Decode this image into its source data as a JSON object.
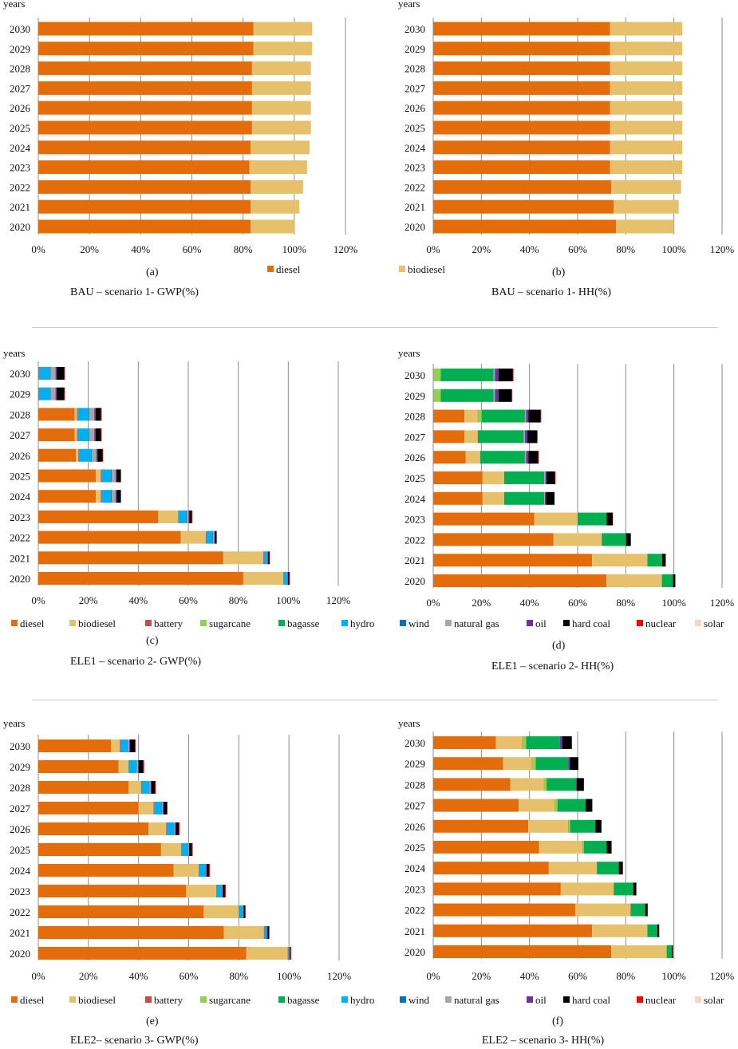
{
  "colors": {
    "diesel": "#e46c0a",
    "biodiesel": "#e6c06a",
    "battery": "#c0504d",
    "sugarcane": "#92d050",
    "bagasse": "#00b050",
    "hydro": "#00b0f0",
    "wind": "#0070c0",
    "natural gas": "#a6a6a6",
    "oil": "#7030a0",
    "hard coal": "#000000",
    "nuclear": "#ff0000",
    "solar": "#fbd4c4"
  },
  "legends": {
    "bau": [
      "diesel",
      "biodiesel"
    ],
    "ele": [
      "diesel",
      "biodiesel",
      "battery",
      "sugarcane",
      "bagasse",
      "hydro",
      "wind",
      "natural gas",
      "oil",
      "hard coal",
      "nuclear",
      "solar"
    ]
  },
  "chart_data": [
    {
      "type": "bar",
      "orientation": "horizontal",
      "stacked": true,
      "panel_label": "(a)",
      "title": "BAU – scenario 1-  GWP(%)",
      "ylabel": "years",
      "categories": [
        "2020",
        "2021",
        "2022",
        "2023",
        "2024",
        "2025",
        "2026",
        "2027",
        "2028",
        "2029",
        "2030"
      ],
      "xlim": [
        0,
        120
      ],
      "xticks": [
        0,
        20,
        40,
        60,
        80,
        100,
        120
      ],
      "grid": true,
      "legend": "bau",
      "series": [
        {
          "name": "diesel",
          "values": [
            83,
            83,
            83,
            82.5,
            83,
            83.5,
            83.5,
            83.5,
            83.5,
            84,
            84
          ]
        },
        {
          "name": "biodiesel",
          "values": [
            17,
            19,
            20.5,
            22.5,
            23,
            23,
            23,
            23,
            23,
            23,
            23
          ]
        }
      ]
    },
    {
      "type": "bar",
      "orientation": "horizontal",
      "stacked": true,
      "panel_label": "(b)",
      "title": "BAU – scenario 1-  HH(%)",
      "ylabel": "years",
      "categories": [
        "2020",
        "2021",
        "2022",
        "2023",
        "2024",
        "2025",
        "2026",
        "2027",
        "2028",
        "2029",
        "2030"
      ],
      "xlim": [
        0,
        120
      ],
      "xticks": [
        0,
        20,
        40,
        60,
        80,
        100,
        120
      ],
      "grid": true,
      "series": [
        {
          "name": "diesel",
          "values": [
            76,
            75,
            74,
            73.5,
            73.5,
            73.5,
            73.5,
            73.5,
            73.5,
            73.5,
            73.5
          ]
        },
        {
          "name": "biodiesel",
          "values": [
            24,
            27,
            29,
            30,
            30,
            30,
            30,
            30,
            30,
            30,
            30
          ]
        }
      ]
    },
    {
      "type": "bar",
      "orientation": "horizontal",
      "stacked": true,
      "panel_label": "(c)",
      "title": "ELE1 – scenario 2-  GWP(%)",
      "ylabel": "years",
      "categories": [
        "2020",
        "2021",
        "2022",
        "2023",
        "2024",
        "2025",
        "2026",
        "2027",
        "2028",
        "2029",
        "2030"
      ],
      "xlim": [
        0,
        120
      ],
      "xticks": [
        0,
        20,
        40,
        60,
        80,
        100,
        120
      ],
      "grid": true,
      "legend": "ele",
      "series": [
        {
          "name": "diesel",
          "values": [
            82,
            74,
            57,
            48,
            23,
            23,
            15,
            14.5,
            14.5,
            0,
            0
          ]
        },
        {
          "name": "biodiesel",
          "values": [
            16,
            16,
            10,
            8,
            2,
            2,
            1,
            1,
            1,
            0,
            0
          ]
        },
        {
          "name": "battery",
          "values": [
            0.2,
            0.2,
            0.2,
            0.2,
            0.2,
            0.2,
            0.2,
            0.2,
            0.2,
            0.2,
            0.2
          ]
        },
        {
          "name": "sugarcane",
          "values": [
            0,
            0,
            0,
            0,
            0,
            0,
            0,
            0,
            0,
            0,
            0
          ]
        },
        {
          "name": "bagasse",
          "values": [
            0,
            0,
            0,
            0,
            0,
            0,
            0,
            0,
            0,
            0,
            0
          ]
        },
        {
          "name": "hydro",
          "values": [
            1.5,
            1.5,
            2.5,
            3,
            4,
            4,
            5,
            4.5,
            4.5,
            4.5,
            4.5
          ]
        },
        {
          "name": "wind",
          "values": [
            0.2,
            0.2,
            0.2,
            0.2,
            0.2,
            0.2,
            0.2,
            0.2,
            0.2,
            0.2,
            0.2
          ]
        },
        {
          "name": "natural gas",
          "values": [
            0,
            0,
            0.5,
            0.7,
            1.5,
            1.5,
            1.8,
            2,
            2,
            2,
            2
          ]
        },
        {
          "name": "oil",
          "values": [
            0,
            0,
            0.3,
            0.3,
            0.5,
            0.5,
            0.5,
            0.5,
            0.5,
            0.5,
            0.5
          ]
        },
        {
          "name": "hard coal",
          "values": [
            0.5,
            0.5,
            0.5,
            1,
            1.5,
            1.5,
            2,
            2.2,
            2.2,
            3,
            3
          ]
        },
        {
          "name": "nuclear",
          "values": [
            0.1,
            0.1,
            0.2,
            0.2,
            0.2,
            0.2,
            0.2,
            0.2,
            0.2,
            0.2,
            0.2
          ]
        },
        {
          "name": "solar",
          "values": [
            0,
            0,
            0,
            0,
            0,
            0,
            0,
            0,
            0,
            0,
            0
          ]
        }
      ]
    },
    {
      "type": "bar",
      "orientation": "horizontal",
      "stacked": true,
      "panel_label": "(d)",
      "title": "ELE1 – scenario 2-  HH(%)",
      "ylabel": "years",
      "categories": [
        "2020",
        "2021",
        "2022",
        "2023",
        "2024",
        "2025",
        "2026",
        "2027",
        "2028",
        "2029",
        "2030"
      ],
      "xlim": [
        0,
        120
      ],
      "xticks": [
        0,
        20,
        40,
        60,
        80,
        100,
        120
      ],
      "grid": true,
      "legend": "ele",
      "series": [
        {
          "name": "diesel",
          "values": [
            72,
            66,
            50,
            42,
            20.5,
            20.5,
            13.5,
            13,
            13,
            0,
            0
          ]
        },
        {
          "name": "biodiesel",
          "values": [
            23,
            23,
            20,
            18,
            9,
            9,
            6,
            5.5,
            5.5,
            0,
            0
          ]
        },
        {
          "name": "battery",
          "values": [
            0.1,
            0.1,
            0.1,
            0.1,
            0.1,
            0.1,
            0.1,
            0.1,
            0.1,
            0.1,
            0.1
          ]
        },
        {
          "name": "sugarcane",
          "values": [
            0,
            0,
            0,
            0,
            0,
            0,
            0,
            0,
            1.5,
            3,
            3
          ]
        },
        {
          "name": "bagasse",
          "values": [
            4.5,
            6,
            10,
            12,
            16.5,
            16.5,
            18.5,
            19,
            18,
            22,
            22
          ]
        },
        {
          "name": "hydro",
          "values": [
            0,
            0,
            0,
            0,
            0,
            0,
            0,
            0,
            0,
            0,
            0
          ]
        },
        {
          "name": "wind",
          "values": [
            0,
            0,
            0,
            0,
            0,
            0,
            0,
            0,
            0,
            0,
            0
          ]
        },
        {
          "name": "natural gas",
          "values": [
            0,
            0,
            0,
            0,
            0.3,
            0.5,
            0.5,
            0.5,
            0.5,
            0.5,
            0.5
          ]
        },
        {
          "name": "oil",
          "values": [
            0,
            0,
            0,
            0,
            0.5,
            0.5,
            1,
            1,
            1,
            1.5,
            1.5
          ]
        },
        {
          "name": "hard coal",
          "values": [
            1,
            1.5,
            2,
            2.5,
            3.5,
            3.5,
            4,
            4,
            5,
            5.5,
            6
          ]
        },
        {
          "name": "nuclear",
          "values": [
            0,
            0,
            0,
            0,
            0,
            0.2,
            0.2,
            0.2,
            0.2,
            0.2,
            0.2
          ]
        },
        {
          "name": "solar",
          "values": [
            0,
            0,
            0,
            0.5,
            0,
            0.3,
            0,
            0,
            0,
            0,
            0.5
          ]
        }
      ]
    },
    {
      "type": "bar",
      "orientation": "horizontal",
      "stacked": true,
      "panel_label": "(e)",
      "title": "ELE2– scenario 3-  GWP(%)",
      "ylabel": "years",
      "categories": [
        "2020",
        "2021",
        "2022",
        "2023",
        "2024",
        "2025",
        "2026",
        "2027",
        "2028",
        "2029",
        "2030"
      ],
      "xlim": [
        0,
        120
      ],
      "xticks": [
        0,
        20,
        40,
        60,
        80,
        100,
        120
      ],
      "grid": true,
      "legend": "ele",
      "series": [
        {
          "name": "diesel",
          "values": [
            83,
            74,
            66,
            59,
            54,
            49,
            44,
            40,
            36,
            32,
            29
          ]
        },
        {
          "name": "biodiesel",
          "values": [
            16.5,
            16,
            14,
            12,
            10,
            8,
            7,
            6,
            5,
            4,
            3.5
          ]
        },
        {
          "name": "battery",
          "values": [
            0.2,
            0.2,
            0.2,
            0.2,
            0.2,
            0.2,
            0.2,
            0.2,
            0.2,
            0.2,
            0.2
          ]
        },
        {
          "name": "sugarcane",
          "values": [
            0,
            0,
            0,
            0,
            0,
            0,
            0,
            0,
            0,
            0,
            0
          ]
        },
        {
          "name": "bagasse",
          "values": [
            0,
            0,
            0,
            0,
            0,
            0,
            0,
            0,
            0,
            0,
            0
          ]
        },
        {
          "name": "hydro",
          "values": [
            0.5,
            1,
            1.5,
            2,
            2.5,
            2.5,
            3,
            3,
            3,
            3,
            3
          ]
        },
        {
          "name": "wind",
          "values": [
            0.1,
            0.1,
            0.1,
            0.1,
            0.1,
            0.1,
            0.1,
            0.1,
            0.1,
            0.1,
            0.1
          ]
        },
        {
          "name": "natural gas",
          "values": [
            0,
            0,
            0,
            0.2,
            0.2,
            0.3,
            0.3,
            0.4,
            0.5,
            0.5,
            0.5
          ]
        },
        {
          "name": "oil",
          "values": [
            0,
            0.2,
            0.2,
            0.2,
            0.2,
            0.2,
            0.3,
            0.3,
            0.3,
            0.3,
            0.3
          ]
        },
        {
          "name": "hard coal",
          "values": [
            0.3,
            0.5,
            0.5,
            0.8,
            1,
            1,
            1.2,
            1.3,
            1.5,
            1.8,
            2
          ]
        },
        {
          "name": "nuclear",
          "values": [
            0.2,
            0.2,
            0.3,
            0.3,
            0.3,
            0.3,
            0.3,
            0.3,
            0.3,
            0.3,
            0.3
          ]
        },
        {
          "name": "solar",
          "values": [
            0,
            0,
            0,
            0,
            0,
            0,
            0,
            0,
            0,
            0,
            0
          ]
        }
      ]
    },
    {
      "type": "bar",
      "orientation": "horizontal",
      "stacked": true,
      "panel_label": "(f)",
      "title": "ELE2 – scenario 3-  HH(%)",
      "ylabel": "years",
      "categories": [
        "2020",
        "2021",
        "2022",
        "2023",
        "2024",
        "2025",
        "2026",
        "2027",
        "2028",
        "2029",
        "2030"
      ],
      "xlim": [
        0,
        120
      ],
      "xticks": [
        0,
        20,
        40,
        60,
        80,
        100,
        120
      ],
      "grid": true,
      "legend": "ele",
      "series": [
        {
          "name": "diesel",
          "values": [
            74,
            66,
            59,
            53,
            48,
            44,
            39.5,
            35.5,
            32,
            29,
            26
          ]
        },
        {
          "name": "biodiesel",
          "values": [
            23,
            23,
            23,
            22,
            20,
            18,
            16.5,
            15,
            14,
            12,
            11
          ]
        },
        {
          "name": "battery",
          "values": [
            0.1,
            0.1,
            0.1,
            0.1,
            0.1,
            0.1,
            0.1,
            0.1,
            0.1,
            0.1,
            0.1
          ]
        },
        {
          "name": "sugarcane",
          "values": [
            0,
            0,
            0,
            0,
            0,
            0.5,
            0.8,
            1,
            1,
            1.5,
            1.5
          ]
        },
        {
          "name": "bagasse",
          "values": [
            2,
            4,
            6,
            8,
            9,
            9.5,
            10.5,
            11.5,
            12,
            13.5,
            14
          ]
        },
        {
          "name": "hydro",
          "values": [
            0,
            0,
            0,
            0,
            0,
            0,
            0,
            0,
            0,
            0,
            0
          ]
        },
        {
          "name": "wind",
          "values": [
            0,
            0,
            0,
            0,
            0,
            0,
            0,
            0,
            0,
            0,
            0
          ]
        },
        {
          "name": "natural gas",
          "values": [
            0,
            0,
            0,
            0,
            0,
            0,
            0,
            0,
            0,
            0,
            0
          ]
        },
        {
          "name": "oil",
          "values": [
            0,
            0,
            0,
            0,
            0,
            0,
            0,
            0.3,
            0.5,
            0.7,
            1
          ]
        },
        {
          "name": "hard coal",
          "values": [
            0.5,
            0.8,
            1,
            1.3,
            1.7,
            2,
            2.5,
            2.7,
            3,
            3.5,
            4
          ]
        },
        {
          "name": "nuclear",
          "values": [
            0,
            0,
            0,
            0,
            0,
            0,
            0,
            0,
            0,
            0,
            0
          ]
        },
        {
          "name": "solar",
          "values": [
            0,
            0,
            0,
            0,
            0,
            0,
            0,
            0,
            0,
            0,
            0
          ]
        }
      ]
    }
  ]
}
